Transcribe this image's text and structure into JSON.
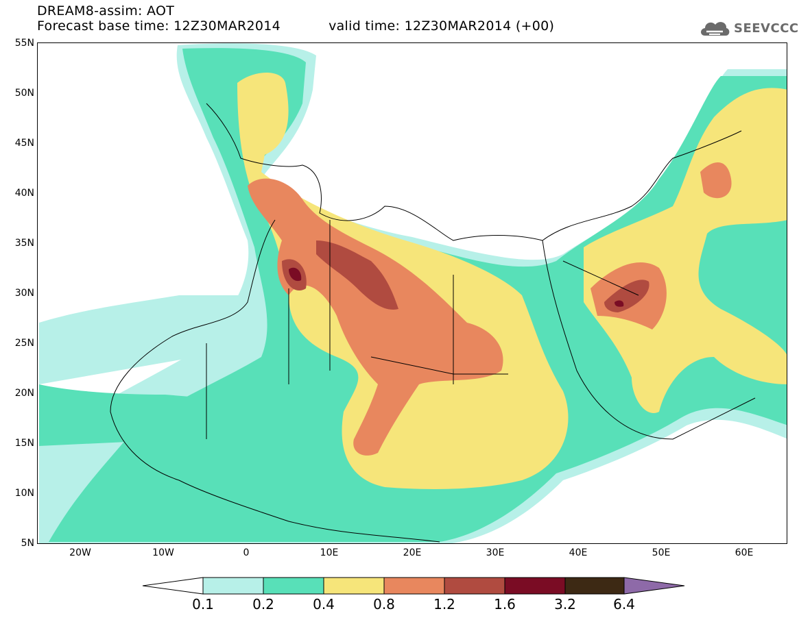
{
  "header": {
    "title_line1": "DREAM8-assim: AOT",
    "base_time": "Forecast base time: 12Z30MAR2014",
    "valid_time": "valid time: 12Z30MAR2014 (+00)"
  },
  "logo": {
    "text": "SEEVCCC",
    "icon": "cloud-icon"
  },
  "axes": {
    "lat_labels": [
      "55N",
      "50N",
      "45N",
      "40N",
      "35N",
      "30N",
      "25N",
      "20N",
      "15N",
      "10N",
      "5N"
    ],
    "lon_labels": [
      "20W",
      "10W",
      "0",
      "10E",
      "20E",
      "30E",
      "40E",
      "50E",
      "60E"
    ]
  },
  "colorbar": {
    "labels": [
      "0.1",
      "0.2",
      "0.4",
      "0.8",
      "1.2",
      "1.6",
      "3.2",
      "6.4"
    ],
    "colors": [
      "#b7f0e8",
      "#58e0b8",
      "#f6e57a",
      "#e8875e",
      "#b04b40",
      "#7a0c24",
      "#3d2914",
      "#8e6aa8"
    ]
  }
}
